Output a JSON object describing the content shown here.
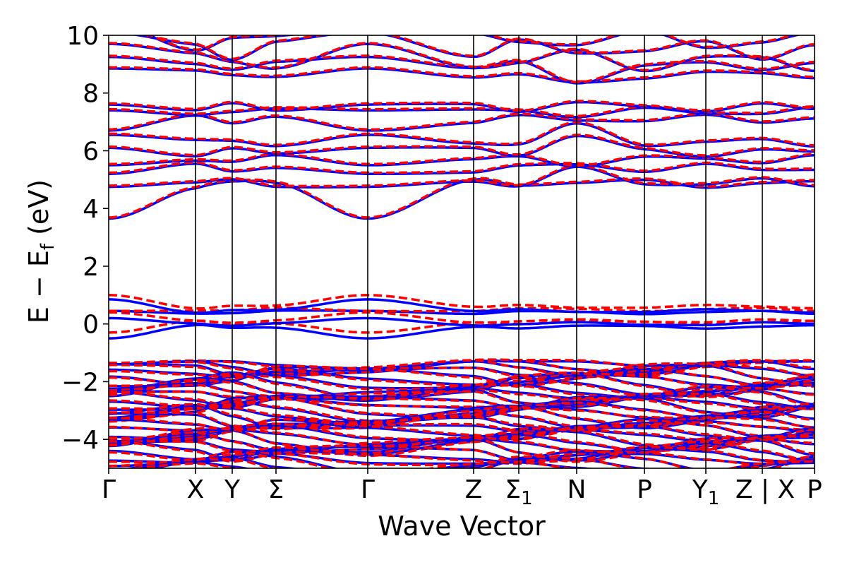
{
  "chart_data": {
    "type": "line",
    "title": "",
    "xlabel": "Wave Vector",
    "ylabel": "E − E",
    "ylabel_sub": "f",
    "ylabel_unit": " (eV)",
    "ylim": [
      -5,
      10
    ],
    "y_ticks": [
      -4,
      -2,
      0,
      2,
      4,
      6,
      8,
      10
    ],
    "y_tick_labels": [
      "−4",
      "−2",
      "0",
      "2",
      "4",
      "6",
      "8",
      "10"
    ],
    "x_ticks": [
      {
        "pos": 0.0,
        "label": "Γ",
        "sub": ""
      },
      {
        "pos": 0.123,
        "label": "X",
        "sub": ""
      },
      {
        "pos": 0.175,
        "label": "Y",
        "sub": ""
      },
      {
        "pos": 0.237,
        "label": "Σ",
        "sub": ""
      },
      {
        "pos": 0.367,
        "label": "Γ",
        "sub": ""
      },
      {
        "pos": 0.517,
        "label": "Z",
        "sub": ""
      },
      {
        "pos": 0.581,
        "label": "Σ",
        "sub": "1"
      },
      {
        "pos": 0.663,
        "label": "N",
        "sub": ""
      },
      {
        "pos": 0.759,
        "label": "P",
        "sub": ""
      },
      {
        "pos": 0.846,
        "label": "Y",
        "sub": "1"
      },
      {
        "pos": 0.926,
        "label": "Z | X",
        "sub": ""
      },
      {
        "pos": 1.0,
        "label": "P",
        "sub": ""
      }
    ],
    "segment_break_after": 10,
    "series": [
      {
        "style": "solid",
        "color": "#0000ff"
      },
      {
        "style": "dashed",
        "color": "#ff0000"
      }
    ],
    "bands_conduction_gamma": [
      3.65,
      4.75,
      5.2,
      5.5,
      6.1,
      6.55,
      6.7,
      7.4,
      7.6,
      8.85,
      9.25
    ],
    "bands_conduction_boundary": [
      4.85,
      4.9,
      5.4,
      5.7,
      5.95,
      6.3,
      7.1,
      7.35,
      7.5,
      8.65,
      8.95
    ],
    "bands_conduction_n": [
      4.95,
      5.3,
      5.5,
      5.6,
      6.5,
      6.8,
      7.1,
      7.3,
      7.6,
      8.25,
      8.45
    ],
    "bands_gap_gamma_solid": [
      -0.5,
      0.2,
      0.45,
      0.85
    ],
    "bands_gap_gamma_dashed": [
      -0.3,
      0.4,
      0.45,
      1.0
    ],
    "bands_gap_boundary_solid": [
      -0.1,
      0.0,
      0.4,
      0.45
    ],
    "bands_gap_boundary_dashed": [
      0.05,
      0.1,
      0.5,
      0.6
    ],
    "valence_range": [
      -5,
      -1.3
    ]
  }
}
